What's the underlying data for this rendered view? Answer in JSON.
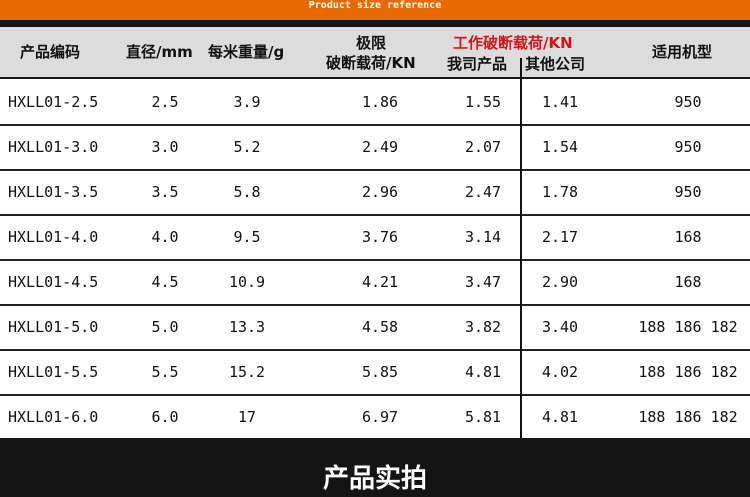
{
  "banner": "Product size reference",
  "headers": {
    "code": "产品编码",
    "diameter": "直径/mm",
    "weight": "每米重量/g",
    "ultimate_1": "极限",
    "ultimate_2": "破断载荷/KN",
    "working": "工作破断载荷/KN",
    "ours": "我司产品",
    "others": "其他公司",
    "model": "适用机型"
  },
  "rows": [
    {
      "code": "HXLL01-2.5",
      "diameter": "2.5",
      "weight": "3.9",
      "ultimate": "1.86",
      "ours": "1.55",
      "others": "1.41",
      "model": "950"
    },
    {
      "code": "HXLL01-3.0",
      "diameter": "3.0",
      "weight": "5.2",
      "ultimate": "2.49",
      "ours": "2.07",
      "others": "1.54",
      "model": "950"
    },
    {
      "code": "HXLL01-3.5",
      "diameter": "3.5",
      "weight": "5.8",
      "ultimate": "2.96",
      "ours": "2.47",
      "others": "1.78",
      "model": "950"
    },
    {
      "code": "HXLL01-4.0",
      "diameter": "4.0",
      "weight": "9.5",
      "ultimate": "3.76",
      "ours": "3.14",
      "others": "2.17",
      "model": "168"
    },
    {
      "code": "HXLL01-4.5",
      "diameter": "4.5",
      "weight": "10.9",
      "ultimate": "4.21",
      "ours": "3.47",
      "others": "2.90",
      "model": "168"
    },
    {
      "code": "HXLL01-5.0",
      "diameter": "5.0",
      "weight": "13.3",
      "ultimate": "4.58",
      "ours": "3.82",
      "others": "3.40",
      "model": "188 186 182"
    },
    {
      "code": "HXLL01-5.5",
      "diameter": "5.5",
      "weight": "15.2",
      "ultimate": "5.85",
      "ours": "4.81",
      "others": "4.02",
      "model": "188 186 182"
    },
    {
      "code": "HXLL01-6.0",
      "diameter": "6.0",
      "weight": "17",
      "ultimate": "6.97",
      "ours": "5.81",
      "others": "4.81",
      "model": "188 186 182"
    }
  ],
  "footer": "产品实拍",
  "colors": {
    "banner": "#e66a00",
    "highlight": "#d0151a",
    "dark": "#141414"
  }
}
